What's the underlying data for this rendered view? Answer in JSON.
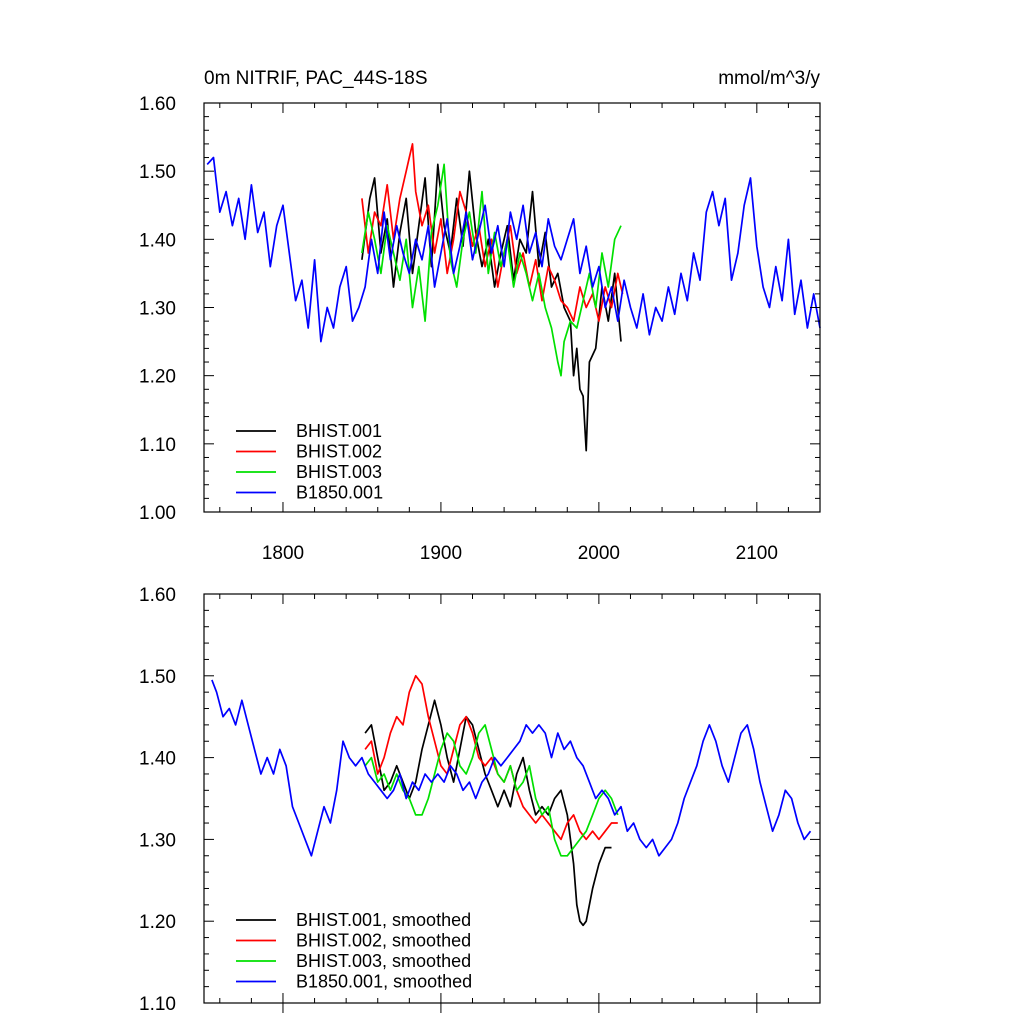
{
  "colors": {
    "BHIST.001": "#000000",
    "BHIST.002": "#ff0000",
    "BHIST.003": "#00e000",
    "B1850.001": "#0000ff"
  },
  "chart_data": [
    {
      "type": "line",
      "title": "0m NITRIF, PAC_44S-18S",
      "units": "mmol/m^3/y",
      "xlim": [
        1750,
        2140
      ],
      "ylim": [
        1.0,
        1.6
      ],
      "xticks": [
        1800,
        1900,
        2000,
        2100
      ],
      "yticks": [
        1.0,
        1.1,
        1.2,
        1.3,
        1.4,
        1.5,
        1.6
      ],
      "ytick_labels": [
        "1.00",
        "1.10",
        "1.20",
        "1.30",
        "1.40",
        "1.50",
        "1.60"
      ],
      "xtick_labels": [
        "1800",
        "1900",
        "2000",
        "2100"
      ],
      "legend_position": "bottom-left",
      "series": [
        {
          "name": "BHIST.001",
          "label": "BHIST.001",
          "x": [
            1850,
            1855,
            1858,
            1862,
            1866,
            1870,
            1874,
            1878,
            1882,
            1886,
            1890,
            1894,
            1898,
            1902,
            1906,
            1910,
            1914,
            1918,
            1922,
            1926,
            1930,
            1934,
            1938,
            1942,
            1946,
            1950,
            1954,
            1958,
            1962,
            1966,
            1970,
            1974,
            1978,
            1982,
            1984,
            1986,
            1988,
            1990,
            1992,
            1994,
            1998,
            2002,
            2006,
            2010,
            2014
          ],
          "values": [
            1.37,
            1.46,
            1.49,
            1.38,
            1.43,
            1.33,
            1.41,
            1.46,
            1.35,
            1.42,
            1.49,
            1.36,
            1.51,
            1.42,
            1.38,
            1.46,
            1.39,
            1.5,
            1.41,
            1.36,
            1.4,
            1.33,
            1.38,
            1.42,
            1.34,
            1.4,
            1.38,
            1.47,
            1.36,
            1.41,
            1.33,
            1.35,
            1.3,
            1.28,
            1.2,
            1.24,
            1.18,
            1.17,
            1.09,
            1.22,
            1.24,
            1.33,
            1.28,
            1.35,
            1.25
          ]
        },
        {
          "name": "BHIST.002",
          "label": "BHIST.002",
          "x": [
            1850,
            1854,
            1858,
            1862,
            1866,
            1870,
            1874,
            1878,
            1880,
            1882,
            1884,
            1888,
            1892,
            1896,
            1900,
            1904,
            1908,
            1912,
            1916,
            1920,
            1924,
            1928,
            1932,
            1936,
            1940,
            1944,
            1948,
            1952,
            1956,
            1960,
            1964,
            1968,
            1972,
            1976,
            1980,
            1984,
            1988,
            1992,
            1996,
            2000,
            2004,
            2008,
            2012,
            2015
          ],
          "values": [
            1.46,
            1.38,
            1.44,
            1.42,
            1.48,
            1.4,
            1.46,
            1.5,
            1.52,
            1.54,
            1.47,
            1.42,
            1.45,
            1.38,
            1.43,
            1.35,
            1.4,
            1.47,
            1.44,
            1.39,
            1.42,
            1.36,
            1.4,
            1.33,
            1.38,
            1.42,
            1.35,
            1.38,
            1.33,
            1.37,
            1.31,
            1.36,
            1.34,
            1.31,
            1.3,
            1.28,
            1.33,
            1.3,
            1.32,
            1.28,
            1.33,
            1.3,
            1.35,
            1.32
          ]
        },
        {
          "name": "BHIST.003",
          "label": "BHIST.003",
          "x": [
            1850,
            1854,
            1858,
            1862,
            1866,
            1870,
            1874,
            1878,
            1882,
            1886,
            1890,
            1894,
            1898,
            1902,
            1906,
            1910,
            1914,
            1918,
            1922,
            1926,
            1930,
            1934,
            1938,
            1942,
            1946,
            1950,
            1954,
            1958,
            1962,
            1966,
            1970,
            1974,
            1976,
            1978,
            1982,
            1986,
            1990,
            1994,
            1998,
            2002,
            2006,
            2010,
            2014
          ],
          "values": [
            1.38,
            1.44,
            1.4,
            1.35,
            1.42,
            1.38,
            1.34,
            1.4,
            1.3,
            1.36,
            1.28,
            1.41,
            1.45,
            1.51,
            1.37,
            1.33,
            1.4,
            1.44,
            1.38,
            1.47,
            1.35,
            1.41,
            1.36,
            1.4,
            1.33,
            1.38,
            1.35,
            1.31,
            1.35,
            1.3,
            1.27,
            1.22,
            1.2,
            1.25,
            1.28,
            1.27,
            1.31,
            1.35,
            1.3,
            1.38,
            1.33,
            1.4,
            1.42
          ]
        },
        {
          "name": "B1850.001",
          "label": "B1850.001",
          "x": [
            1752,
            1756,
            1760,
            1764,
            1768,
            1772,
            1776,
            1780,
            1784,
            1788,
            1792,
            1796,
            1800,
            1804,
            1808,
            1812,
            1816,
            1820,
            1824,
            1828,
            1832,
            1836,
            1840,
            1844,
            1848,
            1852,
            1856,
            1860,
            1864,
            1868,
            1872,
            1876,
            1880,
            1884,
            1888,
            1892,
            1896,
            1900,
            1904,
            1908,
            1912,
            1916,
            1920,
            1924,
            1928,
            1932,
            1936,
            1940,
            1944,
            1948,
            1952,
            1956,
            1960,
            1964,
            1968,
            1972,
            1976,
            1980,
            1984,
            1988,
            1992,
            1996,
            2000,
            2004,
            2008,
            2012,
            2016,
            2020,
            2024,
            2028,
            2032,
            2036,
            2040,
            2044,
            2048,
            2052,
            2056,
            2060,
            2064,
            2068,
            2072,
            2076,
            2080,
            2084,
            2088,
            2092,
            2096,
            2100,
            2104,
            2108,
            2112,
            2116,
            2120,
            2124,
            2128,
            2132,
            2136,
            2140
          ],
          "values": [
            1.51,
            1.52,
            1.44,
            1.47,
            1.42,
            1.46,
            1.4,
            1.48,
            1.41,
            1.44,
            1.36,
            1.42,
            1.45,
            1.38,
            1.31,
            1.34,
            1.27,
            1.37,
            1.25,
            1.3,
            1.27,
            1.33,
            1.36,
            1.28,
            1.3,
            1.33,
            1.4,
            1.35,
            1.44,
            1.37,
            1.42,
            1.38,
            1.35,
            1.4,
            1.37,
            1.42,
            1.33,
            1.38,
            1.43,
            1.35,
            1.39,
            1.44,
            1.37,
            1.41,
            1.45,
            1.38,
            1.42,
            1.36,
            1.44,
            1.4,
            1.45,
            1.38,
            1.41,
            1.36,
            1.43,
            1.39,
            1.37,
            1.4,
            1.43,
            1.35,
            1.39,
            1.33,
            1.36,
            1.3,
            1.33,
            1.28,
            1.34,
            1.3,
            1.27,
            1.32,
            1.26,
            1.3,
            1.28,
            1.33,
            1.29,
            1.35,
            1.31,
            1.38,
            1.34,
            1.44,
            1.47,
            1.42,
            1.46,
            1.34,
            1.38,
            1.45,
            1.49,
            1.39,
            1.33,
            1.3,
            1.36,
            1.31,
            1.4,
            1.29,
            1.34,
            1.27,
            1.32,
            1.27
          ]
        }
      ]
    },
    {
      "type": "line",
      "title": "",
      "xlim": [
        1750,
        2140
      ],
      "ylim": [
        1.1,
        1.6
      ],
      "xticks": [
        1800,
        1900,
        2000,
        2100
      ],
      "yticks": [
        1.1,
        1.2,
        1.3,
        1.4,
        1.5,
        1.6
      ],
      "ytick_labels": [
        "1.10",
        "1.20",
        "1.30",
        "1.40",
        "1.50",
        "1.60"
      ],
      "legend_position": "bottom-left",
      "series": [
        {
          "name": "BHIST.001",
          "label": "BHIST.001, smoothed",
          "x": [
            1852,
            1856,
            1860,
            1864,
            1868,
            1872,
            1876,
            1880,
            1884,
            1888,
            1892,
            1896,
            1900,
            1904,
            1908,
            1912,
            1916,
            1920,
            1924,
            1928,
            1932,
            1936,
            1940,
            1944,
            1948,
            1952,
            1956,
            1960,
            1964,
            1968,
            1972,
            1976,
            1980,
            1984,
            1986,
            1988,
            1990,
            1992,
            1996,
            2000,
            2004,
            2008
          ],
          "values": [
            1.43,
            1.44,
            1.4,
            1.36,
            1.37,
            1.39,
            1.37,
            1.35,
            1.37,
            1.41,
            1.44,
            1.47,
            1.44,
            1.4,
            1.37,
            1.41,
            1.45,
            1.44,
            1.41,
            1.38,
            1.36,
            1.34,
            1.36,
            1.34,
            1.38,
            1.4,
            1.36,
            1.33,
            1.34,
            1.33,
            1.35,
            1.36,
            1.33,
            1.27,
            1.22,
            1.2,
            1.195,
            1.2,
            1.24,
            1.27,
            1.29,
            1.29
          ]
        },
        {
          "name": "BHIST.002",
          "label": "BHIST.002, smoothed",
          "x": [
            1852,
            1856,
            1860,
            1864,
            1868,
            1872,
            1876,
            1880,
            1884,
            1888,
            1892,
            1896,
            1900,
            1904,
            1908,
            1912,
            1916,
            1920,
            1924,
            1928,
            1932,
            1936,
            1940,
            1944,
            1948,
            1952,
            1956,
            1960,
            1964,
            1968,
            1972,
            1976,
            1980,
            1984,
            1988,
            1992,
            1996,
            2000,
            2004,
            2008,
            2012
          ],
          "values": [
            1.41,
            1.42,
            1.38,
            1.4,
            1.43,
            1.45,
            1.44,
            1.48,
            1.5,
            1.49,
            1.45,
            1.42,
            1.39,
            1.38,
            1.41,
            1.44,
            1.45,
            1.43,
            1.4,
            1.39,
            1.4,
            1.38,
            1.37,
            1.39,
            1.36,
            1.34,
            1.33,
            1.32,
            1.33,
            1.32,
            1.31,
            1.3,
            1.32,
            1.33,
            1.31,
            1.3,
            1.31,
            1.3,
            1.31,
            1.32,
            1.32
          ]
        },
        {
          "name": "BHIST.003",
          "label": "BHIST.003, smoothed",
          "x": [
            1852,
            1856,
            1860,
            1864,
            1868,
            1872,
            1876,
            1880,
            1884,
            1888,
            1892,
            1896,
            1900,
            1904,
            1908,
            1912,
            1916,
            1920,
            1924,
            1928,
            1932,
            1936,
            1940,
            1944,
            1948,
            1952,
            1956,
            1960,
            1964,
            1968,
            1972,
            1976,
            1980,
            1984,
            1988,
            1992,
            1996,
            2000,
            2004,
            2008,
            2012
          ],
          "values": [
            1.39,
            1.4,
            1.37,
            1.38,
            1.36,
            1.38,
            1.36,
            1.35,
            1.33,
            1.33,
            1.35,
            1.38,
            1.41,
            1.43,
            1.42,
            1.39,
            1.38,
            1.4,
            1.43,
            1.44,
            1.41,
            1.38,
            1.37,
            1.39,
            1.36,
            1.37,
            1.39,
            1.35,
            1.33,
            1.34,
            1.3,
            1.28,
            1.28,
            1.29,
            1.3,
            1.31,
            1.33,
            1.35,
            1.36,
            1.35,
            1.33
          ]
        },
        {
          "name": "B1850.001",
          "label": "B1850.001, smoothed",
          "x": [
            1755,
            1758,
            1762,
            1766,
            1770,
            1774,
            1778,
            1782,
            1786,
            1790,
            1794,
            1798,
            1802,
            1806,
            1810,
            1814,
            1818,
            1822,
            1826,
            1830,
            1834,
            1838,
            1842,
            1846,
            1850,
            1854,
            1858,
            1862,
            1866,
            1870,
            1874,
            1878,
            1882,
            1886,
            1890,
            1894,
            1898,
            1902,
            1906,
            1910,
            1914,
            1918,
            1922,
            1926,
            1930,
            1934,
            1938,
            1942,
            1946,
            1950,
            1954,
            1958,
            1962,
            1966,
            1970,
            1974,
            1978,
            1982,
            1986,
            1990,
            1994,
            1998,
            2002,
            2006,
            2010,
            2014,
            2018,
            2022,
            2026,
            2030,
            2034,
            2038,
            2042,
            2046,
            2050,
            2054,
            2058,
            2062,
            2066,
            2070,
            2074,
            2078,
            2082,
            2086,
            2090,
            2094,
            2098,
            2102,
            2106,
            2110,
            2114,
            2118,
            2122,
            2126,
            2130,
            2134
          ],
          "values": [
            1.495,
            1.48,
            1.45,
            1.46,
            1.44,
            1.47,
            1.44,
            1.41,
            1.38,
            1.4,
            1.38,
            1.41,
            1.39,
            1.34,
            1.32,
            1.3,
            1.28,
            1.31,
            1.34,
            1.32,
            1.36,
            1.42,
            1.4,
            1.39,
            1.4,
            1.38,
            1.37,
            1.36,
            1.35,
            1.36,
            1.38,
            1.35,
            1.37,
            1.36,
            1.38,
            1.37,
            1.38,
            1.37,
            1.39,
            1.38,
            1.36,
            1.37,
            1.35,
            1.37,
            1.38,
            1.4,
            1.39,
            1.4,
            1.41,
            1.42,
            1.44,
            1.43,
            1.44,
            1.43,
            1.4,
            1.43,
            1.41,
            1.42,
            1.4,
            1.39,
            1.37,
            1.35,
            1.36,
            1.35,
            1.33,
            1.34,
            1.31,
            1.32,
            1.3,
            1.29,
            1.3,
            1.28,
            1.29,
            1.3,
            1.32,
            1.35,
            1.37,
            1.39,
            1.42,
            1.44,
            1.42,
            1.39,
            1.37,
            1.4,
            1.43,
            1.44,
            1.41,
            1.37,
            1.34,
            1.31,
            1.33,
            1.36,
            1.35,
            1.32,
            1.3,
            1.31
          ]
        }
      ]
    }
  ]
}
